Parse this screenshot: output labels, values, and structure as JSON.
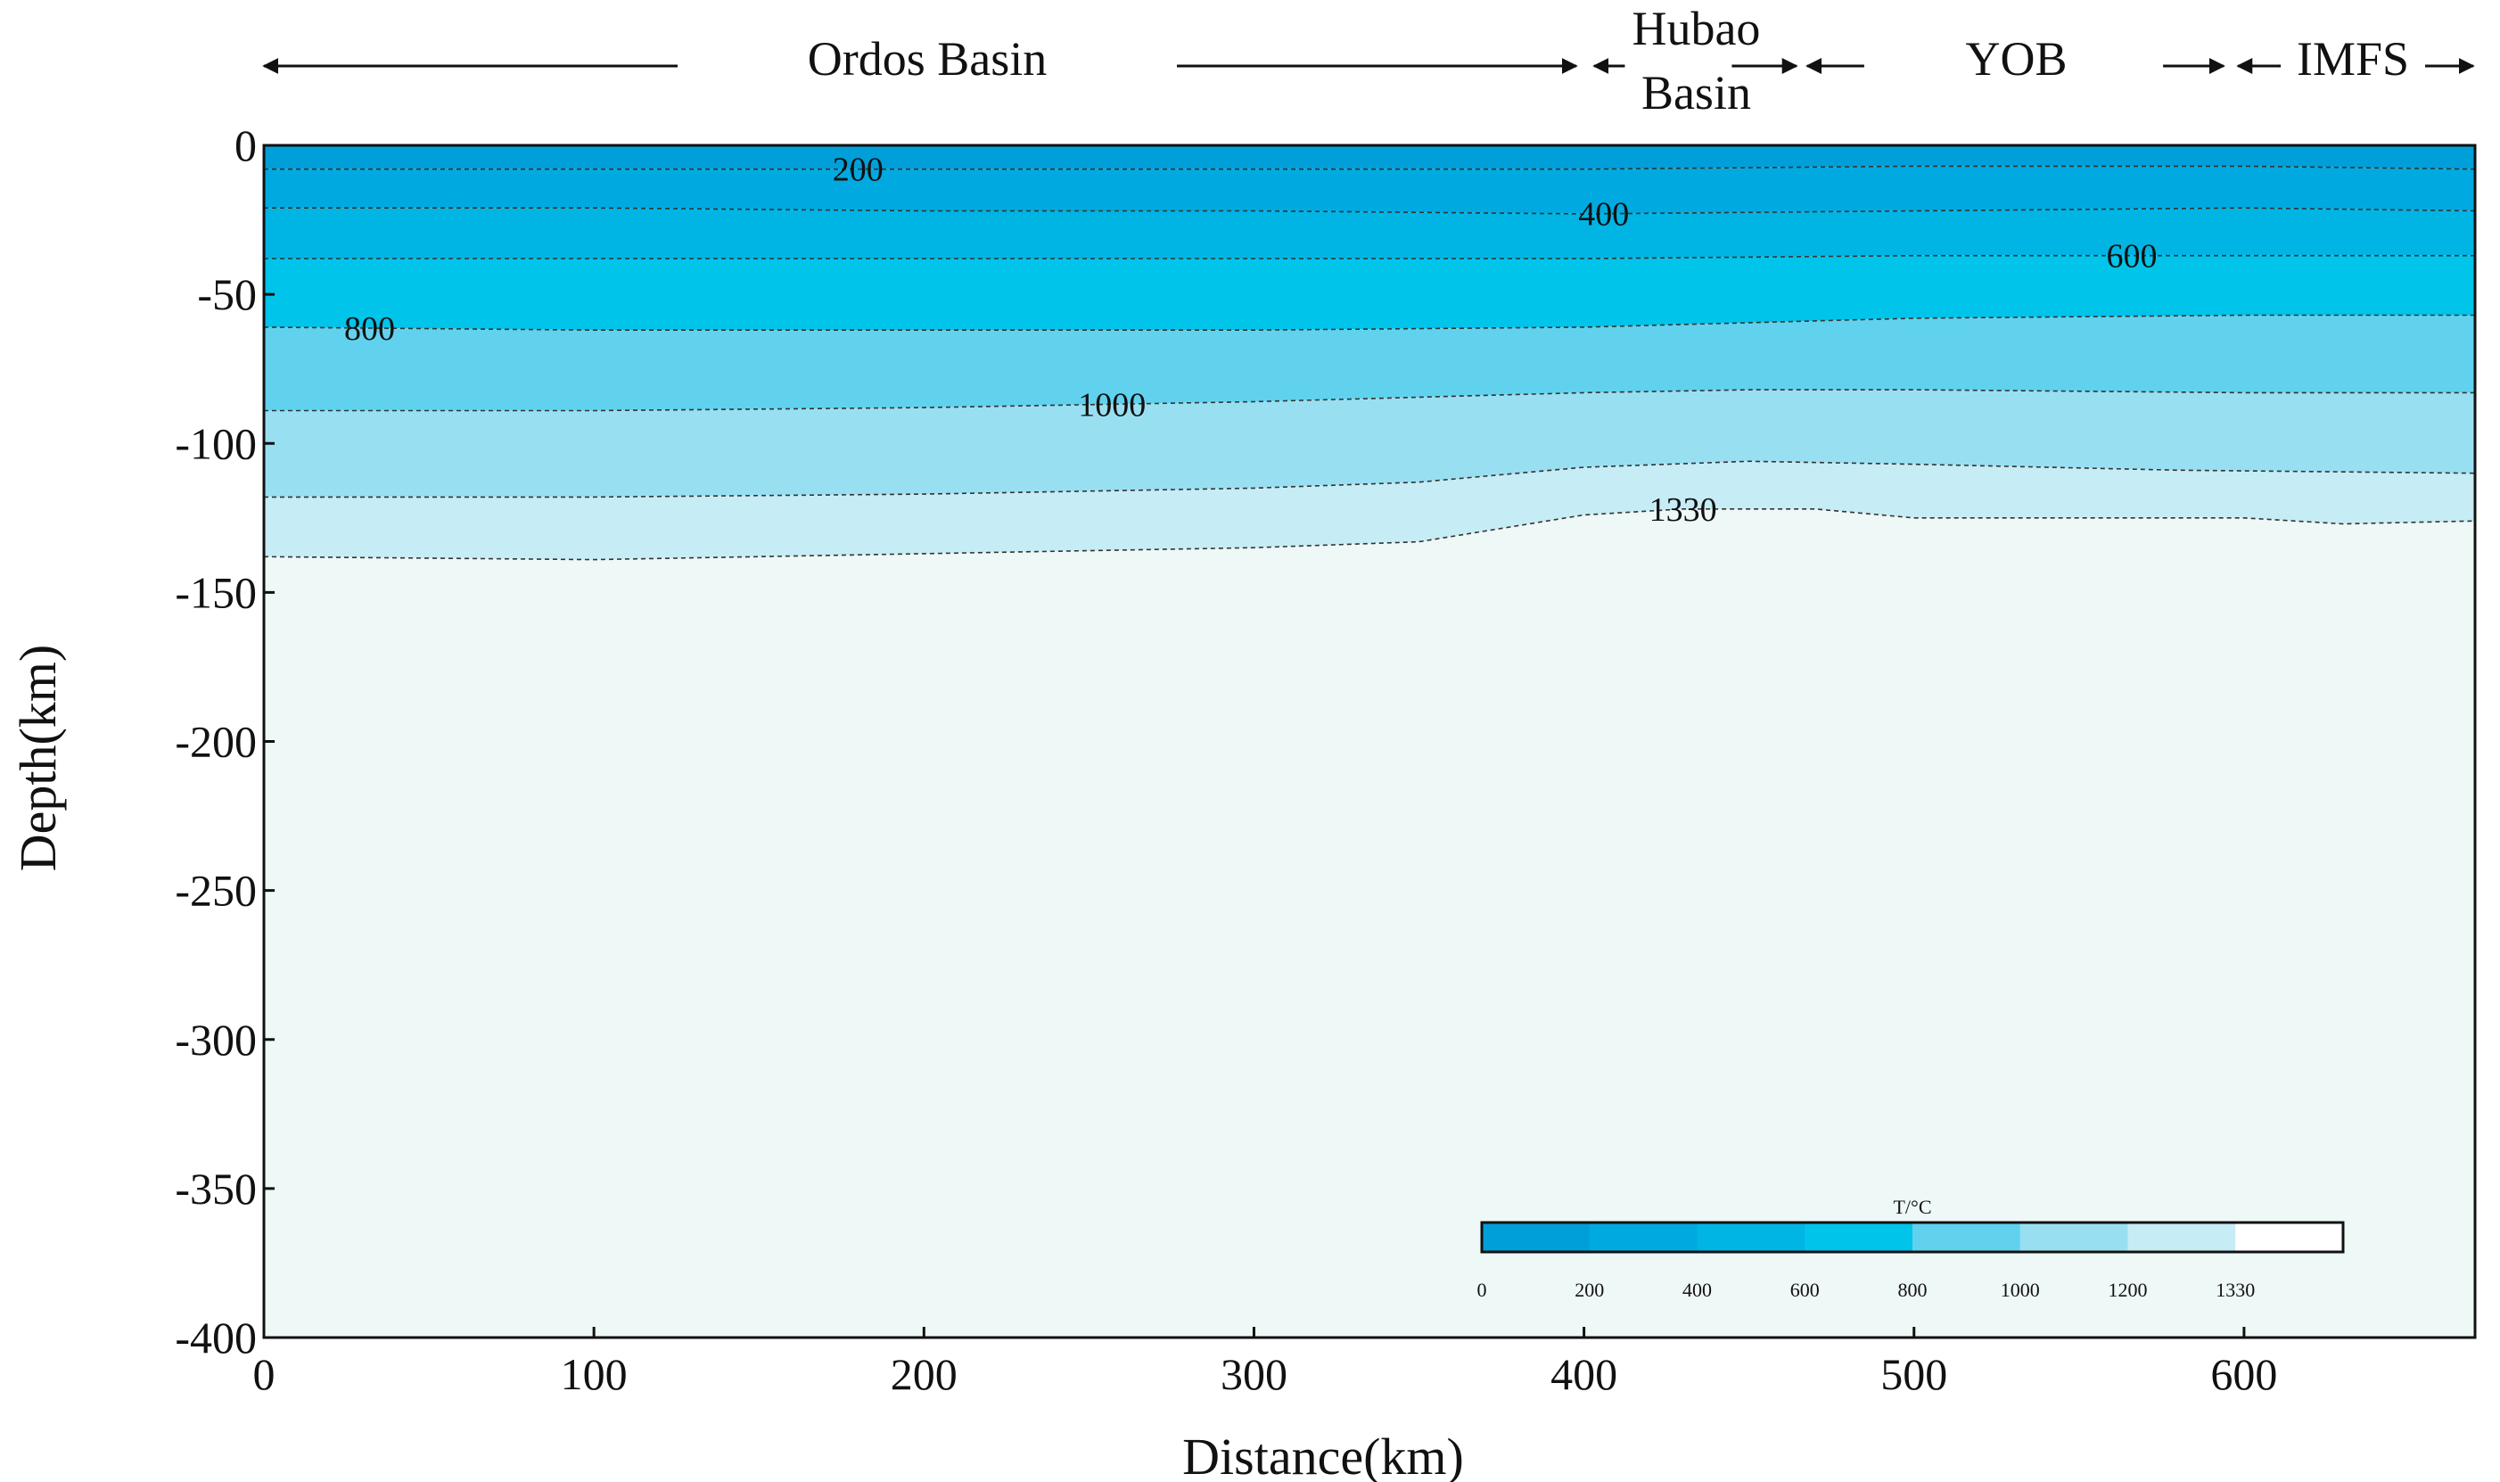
{
  "chart_data": {
    "type": "contour",
    "xlabel": "Distance(km)",
    "ylabel": "Depth(km)",
    "xlim": [
      0,
      670
    ],
    "ylim": [
      -400,
      0
    ],
    "xticks": [
      0,
      100,
      200,
      300,
      400,
      500,
      600
    ],
    "yticks": [
      0,
      -50,
      -100,
      -150,
      -200,
      -250,
      -300,
      -350,
      -400
    ],
    "regions": [
      {
        "name": "Ordos Basin",
        "x_start": 0,
        "x_end": 402
      },
      {
        "name": "Hubao\nBasin",
        "x_start": 402,
        "x_end": 466
      },
      {
        "name": "YOB",
        "x_start": 466,
        "x_end": 596
      },
      {
        "name": "IMFS",
        "x_start": 596,
        "x_end": 670
      }
    ],
    "isotherms": [
      {
        "temperature": 200,
        "label": "200",
        "label_x": 180,
        "points": [
          [
            0,
            -8
          ],
          [
            100,
            -8
          ],
          [
            200,
            -8
          ],
          [
            300,
            -8
          ],
          [
            400,
            -8
          ],
          [
            500,
            -7
          ],
          [
            600,
            -7
          ],
          [
            670,
            -8
          ]
        ]
      },
      {
        "temperature": 400,
        "label": "400",
        "label_x": 406,
        "points": [
          [
            0,
            -21
          ],
          [
            100,
            -21
          ],
          [
            200,
            -22
          ],
          [
            300,
            -22
          ],
          [
            400,
            -23
          ],
          [
            500,
            -22
          ],
          [
            600,
            -21
          ],
          [
            670,
            -22
          ]
        ]
      },
      {
        "temperature": 600,
        "label": "600",
        "label_x": 566,
        "points": [
          [
            0,
            -38
          ],
          [
            100,
            -38
          ],
          [
            200,
            -38
          ],
          [
            300,
            -38
          ],
          [
            400,
            -38
          ],
          [
            500,
            -37
          ],
          [
            600,
            -37
          ],
          [
            670,
            -37
          ]
        ]
      },
      {
        "temperature": 800,
        "label": "800",
        "label_x": 32,
        "points": [
          [
            0,
            -61
          ],
          [
            100,
            -62
          ],
          [
            200,
            -62
          ],
          [
            300,
            -62
          ],
          [
            400,
            -61
          ],
          [
            500,
            -58
          ],
          [
            600,
            -57
          ],
          [
            670,
            -57
          ]
        ]
      },
      {
        "temperature": 1000,
        "label": "1000",
        "label_x": 257,
        "points": [
          [
            0,
            -89
          ],
          [
            100,
            -89
          ],
          [
            200,
            -88
          ],
          [
            300,
            -86
          ],
          [
            400,
            -83
          ],
          [
            450,
            -82
          ],
          [
            500,
            -82
          ],
          [
            600,
            -83
          ],
          [
            670,
            -83
          ]
        ]
      },
      {
        "temperature": 1200,
        "label": "",
        "label_x": null,
        "points": [
          [
            0,
            -118
          ],
          [
            100,
            -118
          ],
          [
            200,
            -117
          ],
          [
            300,
            -115
          ],
          [
            350,
            -113
          ],
          [
            400,
            -108
          ],
          [
            450,
            -106
          ],
          [
            500,
            -107
          ],
          [
            580,
            -109
          ],
          [
            670,
            -110
          ]
        ]
      },
      {
        "temperature": 1330,
        "label": "1330",
        "label_x": 430,
        "points": [
          [
            0,
            -138
          ],
          [
            100,
            -139
          ],
          [
            200,
            -137
          ],
          [
            300,
            -135
          ],
          [
            350,
            -133
          ],
          [
            400,
            -124
          ],
          [
            430,
            -122
          ],
          [
            470,
            -122
          ],
          [
            500,
            -125
          ],
          [
            600,
            -125
          ],
          [
            630,
            -127
          ],
          [
            670,
            -126
          ]
        ]
      }
    ],
    "colorbar": {
      "title": "T/°C",
      "ticks": [
        "0",
        "200",
        "400",
        "600",
        "800",
        "1000",
        "1200",
        "1330"
      ],
      "colors": [
        "#009fd9",
        "#00aae0",
        "#00b5e4",
        "#00c4ea",
        "#60d2ee",
        "#99dff2",
        "#c6ecf5",
        "#ffffff"
      ]
    },
    "fill_colors": {
      "0-200": "#009fd9",
      "200-400": "#00aae0",
      "400-600": "#00b5e4",
      "600-800": "#00c4ea",
      "800-1000": "#60d2ee",
      "1000-1200": "#99dff2",
      "1200-1330": "#c6ecf5",
      "above-1330": "#eef8f6"
    }
  }
}
